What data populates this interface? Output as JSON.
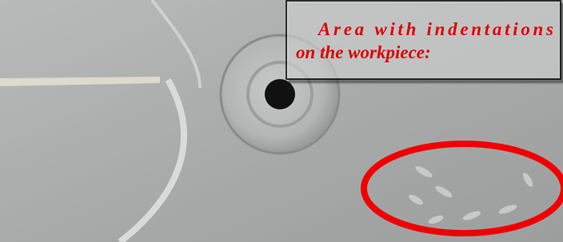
{
  "annotation": {
    "lines": [
      "Area with indentations",
      "on the workpiece:"
    ]
  }
}
